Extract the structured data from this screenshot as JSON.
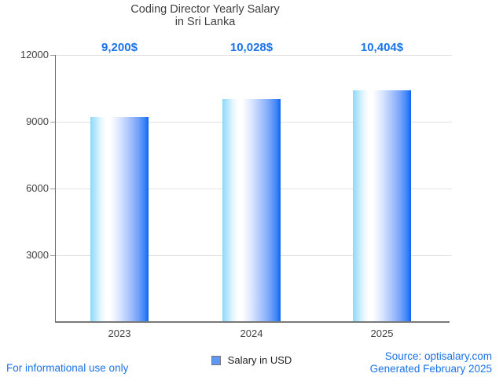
{
  "chart_data": {
    "type": "bar",
    "title_line1": "Coding Director Yearly Salary",
    "title_line2": "in Sri Lanka",
    "categories": [
      "2023",
      "2024",
      "2025"
    ],
    "values": [
      9200,
      10028,
      10404
    ],
    "bar_labels": [
      "9,200$",
      "10,028$",
      "10,404$"
    ],
    "series": [
      {
        "name": "Salary in USD",
        "values": [
          9200,
          10028,
          10404
        ]
      }
    ],
    "ylabel": "",
    "xlabel": "",
    "ylim": [
      0,
      12000
    ],
    "yticks": [
      12000,
      9000,
      6000,
      3000
    ],
    "ytick_labels": [
      "12000",
      "9000",
      "6000",
      "3000"
    ],
    "grid": true,
    "legend_position": "bottom"
  },
  "legend": {
    "label": "Salary in USD",
    "marker_color": "#5e97f6"
  },
  "footer": {
    "left_note": "For informational use only",
    "source": "Source: optisalary.com",
    "generated": "Generated February 2025"
  },
  "colors": {
    "accent_blue": "#1a73e8",
    "bar_gradient_light": "#8bd9fc",
    "bar_gradient_dark": "#0d64f2",
    "axis_text": "#424242",
    "title_text": "#3f3f3f",
    "gridline": "#e2e2e2",
    "legend_marker": "#5e97f6",
    "background": "#ffffff"
  }
}
